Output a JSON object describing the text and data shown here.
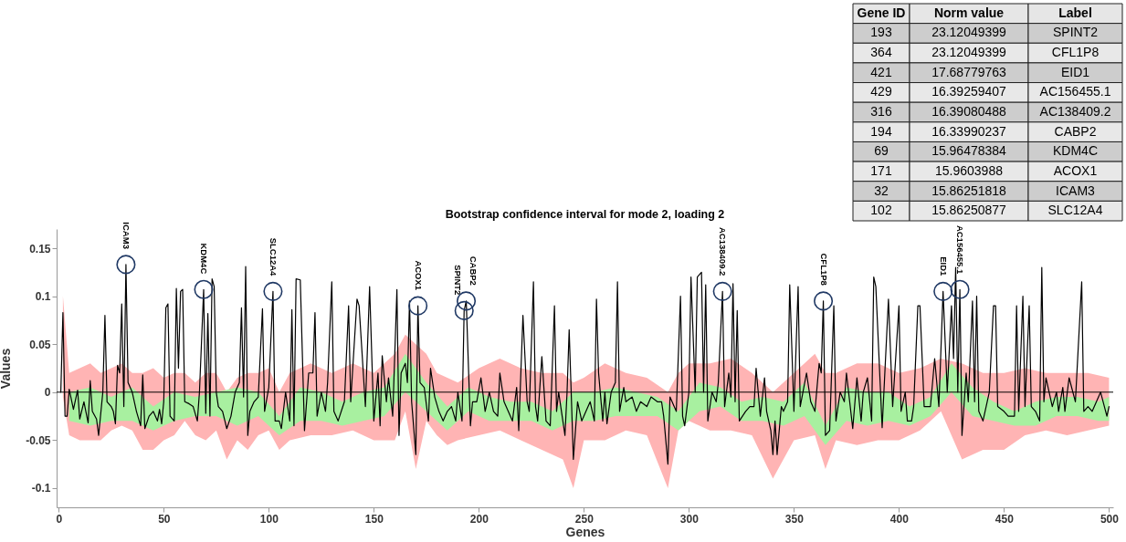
{
  "chart_data": [
    {
      "type": "line",
      "title": "Bootstrap confidence interval for mode 2, loading 2",
      "xlabel": "Genes",
      "ylabel": "Values",
      "xlim": [
        -1,
        502
      ],
      "ylim": [
        -0.12,
        0.17
      ],
      "xticks": [
        0,
        50,
        100,
        150,
        200,
        250,
        300,
        350,
        400,
        450,
        500
      ],
      "yticks": [
        -0.1,
        -0.05,
        0,
        0.05,
        0.1,
        0.15
      ],
      "grid": false,
      "x": [
        1,
        2,
        3,
        4,
        5,
        7,
        9,
        10,
        12,
        14,
        15,
        16,
        18,
        19,
        21,
        22,
        23,
        25,
        26,
        27,
        28,
        29,
        30,
        31,
        32,
        33,
        35,
        37,
        39,
        40,
        41,
        43,
        45,
        47,
        48,
        49,
        50,
        51,
        52,
        53,
        55,
        56,
        57,
        58,
        59,
        60,
        62,
        64,
        66,
        67,
        69,
        70,
        71,
        72,
        73,
        74,
        75,
        76,
        78,
        80,
        82,
        84,
        86,
        87,
        88,
        89,
        90,
        91,
        93,
        95,
        97,
        98,
        100,
        102,
        103,
        105,
        106,
        108,
        110,
        111,
        112,
        113,
        115,
        117,
        119,
        121,
        122,
        123,
        125,
        127,
        128,
        130,
        131,
        133,
        136,
        138,
        139,
        142,
        143,
        146,
        148,
        150,
        152,
        153,
        154,
        156,
        157,
        159,
        161,
        162,
        163,
        165,
        166,
        167,
        168,
        170,
        171,
        172,
        174,
        176,
        177,
        179,
        181,
        183,
        185,
        187,
        189,
        190,
        192,
        193,
        194,
        196,
        197,
        199,
        201,
        203,
        205,
        207,
        209,
        210,
        212,
        214,
        216,
        218,
        219,
        221,
        223,
        224,
        226,
        227,
        228,
        230,
        232,
        234,
        236,
        237,
        238,
        241,
        242,
        243,
        245,
        247,
        249,
        251,
        253,
        255,
        256,
        257,
        259,
        260,
        261,
        263,
        265,
        266,
        267,
        269,
        270,
        273,
        275,
        277,
        280,
        282,
        285,
        287,
        288,
        290,
        291,
        294,
        296,
        297,
        298,
        300,
        301,
        303,
        304,
        306,
        307,
        308,
        309,
        311,
        313,
        314,
        316,
        317,
        319,
        320,
        321,
        322,
        323,
        324,
        327,
        329,
        331,
        332,
        334,
        336,
        337,
        339,
        340,
        341,
        342,
        344,
        345,
        347,
        348,
        350,
        352,
        353,
        356,
        358,
        360,
        362,
        363,
        364,
        365,
        367,
        369,
        370,
        372,
        374,
        375,
        378,
        380,
        382,
        383,
        385,
        387,
        388,
        389,
        392,
        395,
        397,
        400,
        401,
        403,
        404,
        406,
        407,
        409,
        410,
        412,
        415,
        417,
        419,
        421,
        423,
        425,
        426,
        427,
        428,
        429,
        430,
        432,
        433,
        435,
        436,
        437,
        438,
        440,
        443,
        445,
        446,
        447,
        450,
        452,
        455,
        456,
        457,
        459,
        460,
        462,
        463,
        465,
        467,
        468,
        469,
        470,
        473,
        475,
        476,
        478,
        479,
        481,
        484,
        487,
        488,
        490,
        492,
        494,
        496,
        499,
        500
      ],
      "series": [
        {
          "color": "#ffb4b4",
          "values": [
            null,
            null,
            null,
            null,
            null,
            null,
            null,
            null,
            null,
            null,
            null,
            null,
            null,
            null,
            null,
            null,
            null,
            null,
            null,
            null,
            null,
            null,
            null,
            null,
            null,
            null,
            null,
            null,
            null,
            null,
            null,
            null,
            null,
            null,
            null,
            null,
            null,
            null,
            null,
            null,
            null,
            null,
            null,
            null,
            null,
            null,
            null,
            null,
            null,
            null,
            null,
            null,
            null,
            null,
            null,
            null,
            null,
            null,
            null,
            null,
            null,
            null,
            null,
            null,
            null,
            null,
            null,
            null
          ],
          "x": [
            2,
            5,
            10,
            15,
            20,
            25,
            30,
            35,
            40,
            45,
            50,
            55,
            60,
            65,
            70,
            75,
            80,
            85,
            90,
            95,
            100,
            105,
            110,
            120,
            130,
            140,
            150,
            160,
            165,
            170,
            175,
            180,
            185,
            190,
            200,
            210,
            220,
            230,
            240,
            245,
            250,
            260,
            270,
            280,
            290,
            295,
            300,
            310,
            320,
            330,
            340,
            350,
            360,
            365,
            370,
            380,
            390,
            400,
            410,
            420,
            430,
            440,
            450,
            460,
            470,
            480,
            490,
            500
          ],
          "lower": [
            -0.005,
            -0.045,
            -0.05,
            -0.05,
            -0.05,
            -0.04,
            -0.035,
            -0.04,
            -0.06,
            -0.06,
            -0.05,
            -0.045,
            -0.03,
            -0.045,
            -0.05,
            -0.04,
            -0.07,
            -0.05,
            -0.06,
            -0.045,
            -0.04,
            -0.06,
            -0.05,
            -0.045,
            -0.045,
            -0.04,
            -0.05,
            -0.05,
            -0.02,
            -0.08,
            -0.03,
            -0.045,
            -0.055,
            -0.05,
            -0.045,
            -0.04,
            -0.05,
            -0.06,
            -0.07,
            -0.1,
            -0.05,
            -0.05,
            -0.04,
            -0.045,
            -0.1,
            -0.04,
            -0.03,
            -0.04,
            -0.04,
            -0.045,
            -0.09,
            -0.05,
            -0.045,
            -0.08,
            -0.05,
            -0.055,
            -0.05,
            -0.05,
            -0.04,
            -0.02,
            -0.07,
            -0.06,
            -0.06,
            -0.045,
            -0.04,
            -0.045,
            -0.04,
            -0.035
          ],
          "upper": [
            0.1,
            0.02,
            0.025,
            0.03,
            0.02,
            0.025,
            0.03,
            0.02,
            0.02,
            0.025,
            0.015,
            0.02,
            0.02,
            0.01,
            0.02,
            0.02,
            0,
            0.015,
            0.02,
            0.02,
            0.025,
            0,
            0.02,
            0.03,
            0.02,
            0.03,
            0.02,
            0.04,
            0.06,
            0.05,
            0.04,
            0.02,
            0.015,
            0.01,
            0.025,
            0.035,
            0.025,
            0.02,
            0.02,
            0.01,
            0.015,
            0.03,
            0.02,
            0.015,
            0,
            0.02,
            0.03,
            0.03,
            0.035,
            0.02,
            0,
            0.02,
            0.04,
            0.02,
            0.02,
            0.03,
            0.03,
            0.02,
            0.025,
            0.035,
            0.03,
            0.02,
            0.02,
            0.025,
            0.02,
            0.02,
            0.02,
            0.015
          ]
        },
        {
          "color": "#a8f0a0",
          "values": [
            null,
            null,
            null,
            null,
            null,
            null,
            null,
            null,
            null,
            null,
            null,
            null,
            null,
            null,
            null,
            null,
            null,
            null,
            null,
            null,
            null,
            null,
            null,
            null,
            null,
            null,
            null,
            null,
            null,
            null,
            null,
            null,
            null,
            null,
            null,
            null,
            null,
            null,
            null,
            null,
            null,
            null,
            null,
            null,
            null,
            null,
            null,
            null,
            null,
            null,
            null
          ],
          "x": [
            5,
            15,
            25,
            35,
            45,
            55,
            65,
            75,
            85,
            95,
            105,
            115,
            125,
            135,
            145,
            155,
            165,
            175,
            185,
            195,
            205,
            215,
            225,
            235,
            245,
            255,
            265,
            275,
            285,
            295,
            305,
            315,
            325,
            335,
            345,
            355,
            365,
            375,
            385,
            395,
            405,
            415,
            425,
            435,
            445,
            455,
            465,
            475,
            485,
            495,
            500
          ],
          "lower": [
            -0.03,
            -0.035,
            -0.03,
            -0.03,
            -0.04,
            -0.03,
            -0.025,
            -0.025,
            -0.035,
            -0.025,
            -0.045,
            -0.03,
            -0.03,
            -0.035,
            -0.03,
            -0.025,
            0,
            -0.02,
            -0.04,
            -0.02,
            -0.03,
            -0.03,
            -0.03,
            -0.04,
            -0.03,
            -0.03,
            -0.025,
            -0.025,
            -0.025,
            -0.04,
            -0.02,
            -0.015,
            -0.03,
            -0.03,
            -0.035,
            -0.025,
            -0.055,
            -0.03,
            -0.035,
            -0.03,
            -0.035,
            -0.025,
            0,
            -0.025,
            -0.03,
            -0.035,
            -0.035,
            -0.025,
            -0.025,
            -0.03,
            -0.03
          ],
          "upper": [
            0,
            0.005,
            -0.005,
            0.005,
            -0.015,
            0,
            -0.005,
            0,
            0.005,
            0,
            -0.025,
            0.005,
            0,
            -0.01,
            0,
            0.005,
            0.04,
            0.01,
            -0.015,
            0.005,
            -0.005,
            -0.01,
            -0.01,
            -0.02,
            0,
            0,
            0.005,
            0,
            -0.005,
            -0.02,
            0.01,
            0.005,
            -0.01,
            -0.005,
            -0.01,
            0.01,
            -0.035,
            0.005,
            0,
            0,
            -0.015,
            -0.005,
            0.03,
            0.005,
            -0.01,
            -0.02,
            -0.01,
            -0.005,
            -0.005,
            -0.01,
            -0.005
          ]
        },
        {
          "color": "#000000",
          "values": [
            0,
            0.083,
            -0.025,
            -0.025,
            0.003,
            -0.018,
            0.002,
            -0.028,
            -0.01,
            -0.032,
            0.012,
            -0.02,
            -0.028,
            -0.045,
            0,
            0.08,
            -0.01,
            -0.015,
            -0.02,
            -0.033,
            0.028,
            0.02,
            0.092,
            -0.015,
            0.133,
            0.01,
            0,
            -0.02,
            -0.035,
            0.018,
            -0.038,
            -0.025,
            -0.02,
            -0.03,
            -0.018,
            -0.033,
            -0.01,
            0.088,
            0.092,
            -0.025,
            -0.03,
            0.108,
            0.025,
            0.105,
            0.107,
            -0.01,
            -0.012,
            -0.015,
            -0.03,
            0,
            0.107,
            -0.022,
            0.082,
            -0.025,
            0.118,
            0.11,
            0,
            -0.015,
            -0.02,
            -0.038,
            -0.025,
            0,
            0.01,
            0.088,
            -0.005,
            0.131,
            -0.045,
            -0.02,
            -0.01,
            -0.005,
            0.087,
            -0.02,
            0.005,
            0.105,
            -0.03,
            -0.03,
            -0.038,
            0,
            -0.03,
            0.086,
            -0.035,
            0.118,
            0.117,
            -0.04,
            0.02,
            0.02,
            0.083,
            -0.025,
            0,
            -0.02,
            0.01,
            0.115,
            -0.02,
            -0.03,
            -0.01,
            0.09,
            -0.01,
            0.097,
            0.09,
            -0.015,
            0.11,
            -0.03,
            0.02,
            -0.035,
            0.038,
            -0.01,
            0.015,
            -0.025,
            0.107,
            -0.045,
            0.02,
            0.03,
            0.01,
            0.095,
            -0.01,
            -0.065,
            0.09,
            0.01,
            0.005,
            -0.03,
            0.025,
            -0.005,
            -0.02,
            -0.03,
            -0.02,
            -0.015,
            -0.03,
            0,
            -0.03,
            0.085,
            0.095,
            -0.035,
            -0.01,
            -0.01,
            0.015,
            -0.02,
            0,
            -0.02,
            -0.025,
            0.02,
            -0.01,
            -0.02,
            -0.03,
            0.005,
            -0.04,
            0.08,
            -0.01,
            -0.02,
            0.115,
            -0.015,
            -0.03,
            0.037,
            -0.03,
            -0.035,
            0.09,
            -0.02,
            0,
            -0.045,
            0,
            0.065,
            -0.07,
            -0.01,
            -0.03,
            -0.02,
            -0.01,
            -0.03,
            0.097,
            0.02,
            -0.03,
            0,
            -0.033,
            0,
            0.01,
            0.115,
            -0.02,
            0.005,
            -0.01,
            -0.005,
            -0.02,
            -0.01,
            -0.015,
            -0.005,
            -0.01,
            -0.01,
            -0.025,
            -0.075,
            -0.005,
            -0.02,
            0.1,
            -0.025,
            -0.035,
            0,
            0.12,
            0,
            0.12,
            0.125,
            0,
            0.112,
            -0.03,
            0,
            -0.01,
            0.01,
            0.105,
            -0.015,
            0.02,
            -0.005,
            0.113,
            -0.01,
            0.085,
            -0.03,
            -0.02,
            -0.015,
            -0.015,
            0.025,
            -0.025,
            0.015,
            -0.02,
            -0.04,
            -0.065,
            -0.03,
            -0.065,
            -0.015,
            -0.02,
            -0.01,
            0.112,
            -0.02,
            0.11,
            -0.015,
            0.02,
            -0.01,
            -0.02,
            0.03,
            0.02,
            0.095,
            -0.045,
            -0.04,
            0.09,
            -0.03,
            0,
            -0.01,
            0.02,
            -0.038,
            0.015,
            -0.03,
            0,
            0.015,
            -0.03,
            0.12,
            0.11,
            -0.037,
            0.097,
            -0.015,
            0.09,
            -0.02,
            0,
            -0.03,
            -0.03,
            -0.015,
            0.09,
            0.09,
            -0.015,
            -0.015,
            0.035,
            -0.015,
            0.105,
            0,
            0.09,
            0.035,
            0.13,
            0,
            0.107,
            -0.045,
            0.02,
            -0.01,
            0.095,
            -0.01,
            0.1,
            -0.02,
            -0.03,
            0,
            0.09,
            0.09,
            -0.015,
            -0.02,
            -0.025,
            -0.025,
            0.09,
            -0.02,
            0.1,
            -0.015,
            0.09,
            -0.015,
            -0.02,
            -0.03,
            0.13,
            -0.01,
            0.015,
            -0.015,
            0,
            -0.02,
            0.005,
            -0.02,
            0.015,
            -0.01,
            0.115,
            -0.02,
            -0.015,
            -0.02,
            -0.01,
            0,
            -0.025,
            -0.015
          ]
        }
      ],
      "ref_lines": [
        {
          "axis": "y",
          "value": 0,
          "color": "#000000"
        }
      ],
      "annotations": [
        {
          "text": "ICAM3",
          "x": 32,
          "y": 0.133
        },
        {
          "text": "KDM4C",
          "x": 69,
          "y": 0.107
        },
        {
          "text": "SLC12A4",
          "x": 102,
          "y": 0.105
        },
        {
          "text": "ACOX1",
          "x": 171,
          "y": 0.09
        },
        {
          "text": "SPINT2",
          "x": 193,
          "y": 0.085
        },
        {
          "text": "CABP2",
          "x": 194,
          "y": 0.095
        },
        {
          "text": "AC138409.2",
          "x": 316,
          "y": 0.105
        },
        {
          "text": "CFL1P8",
          "x": 364,
          "y": 0.095
        },
        {
          "text": "EID1",
          "x": 421,
          "y": 0.105
        },
        {
          "text": "AC156455.1",
          "x": 429,
          "y": 0.107
        }
      ]
    },
    {
      "type": "other",
      "annotations": [
        "Gene ID",
        "Norm value",
        "Label",
        "193",
        "23.12049399",
        "SPINT2",
        "364",
        "23.12049399",
        "CFL1P8",
        "421",
        "17.68779763",
        "EID1",
        "429",
        "16.39259407",
        "AC156455.1",
        "316",
        "16.39080488",
        "AC138409.2",
        "194",
        "16.33990237",
        "CABP2",
        "69",
        "15.96478384",
        "KDM4C",
        "171",
        "15.9603988",
        "ACOX1",
        "32",
        "15.86251818",
        "ICAM3",
        "102",
        "15.86250877",
        "SLC12A4"
      ]
    }
  ]
}
